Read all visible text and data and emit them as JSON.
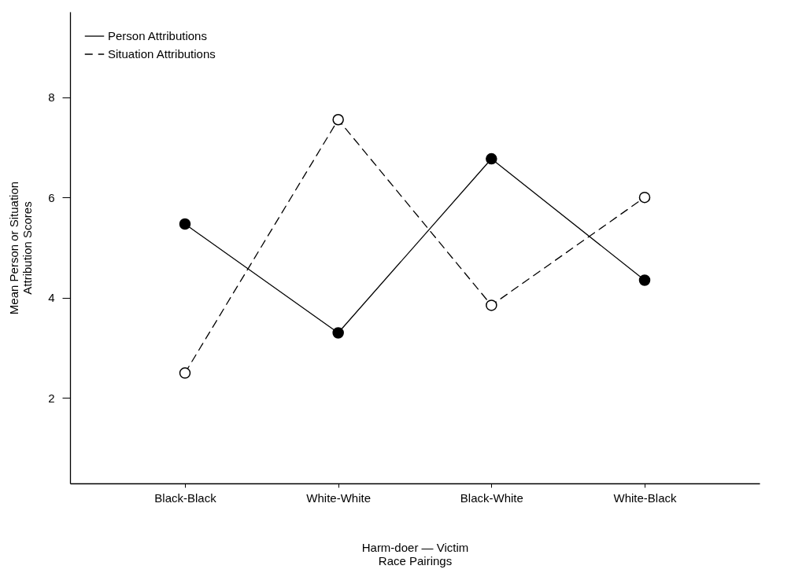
{
  "chart_data": {
    "type": "line",
    "xlabel": "Harm-doer — Victim\nRace Pairings",
    "ylabel": "Mean Person or Situation\nAttribution Scores",
    "categories": [
      "Black-Black",
      "White-White",
      "Black-White",
      "White-Black"
    ],
    "series": [
      {
        "name": "Person Attributions",
        "color": "#000000",
        "line_style": "solid",
        "values": [
          5.47,
          3.3,
          6.77,
          4.35
        ]
      },
      {
        "name": "Situation Attributions",
        "color": "#000000",
        "line_style": "dashed",
        "values": [
          2.5,
          7.55,
          3.85,
          6.0
        ]
      }
    ],
    "ylim": [
      0.3,
      9.7
    ],
    "yticks": [
      2,
      4,
      6,
      8
    ],
    "grid": false,
    "legend": "top left",
    "marker": "circle"
  }
}
